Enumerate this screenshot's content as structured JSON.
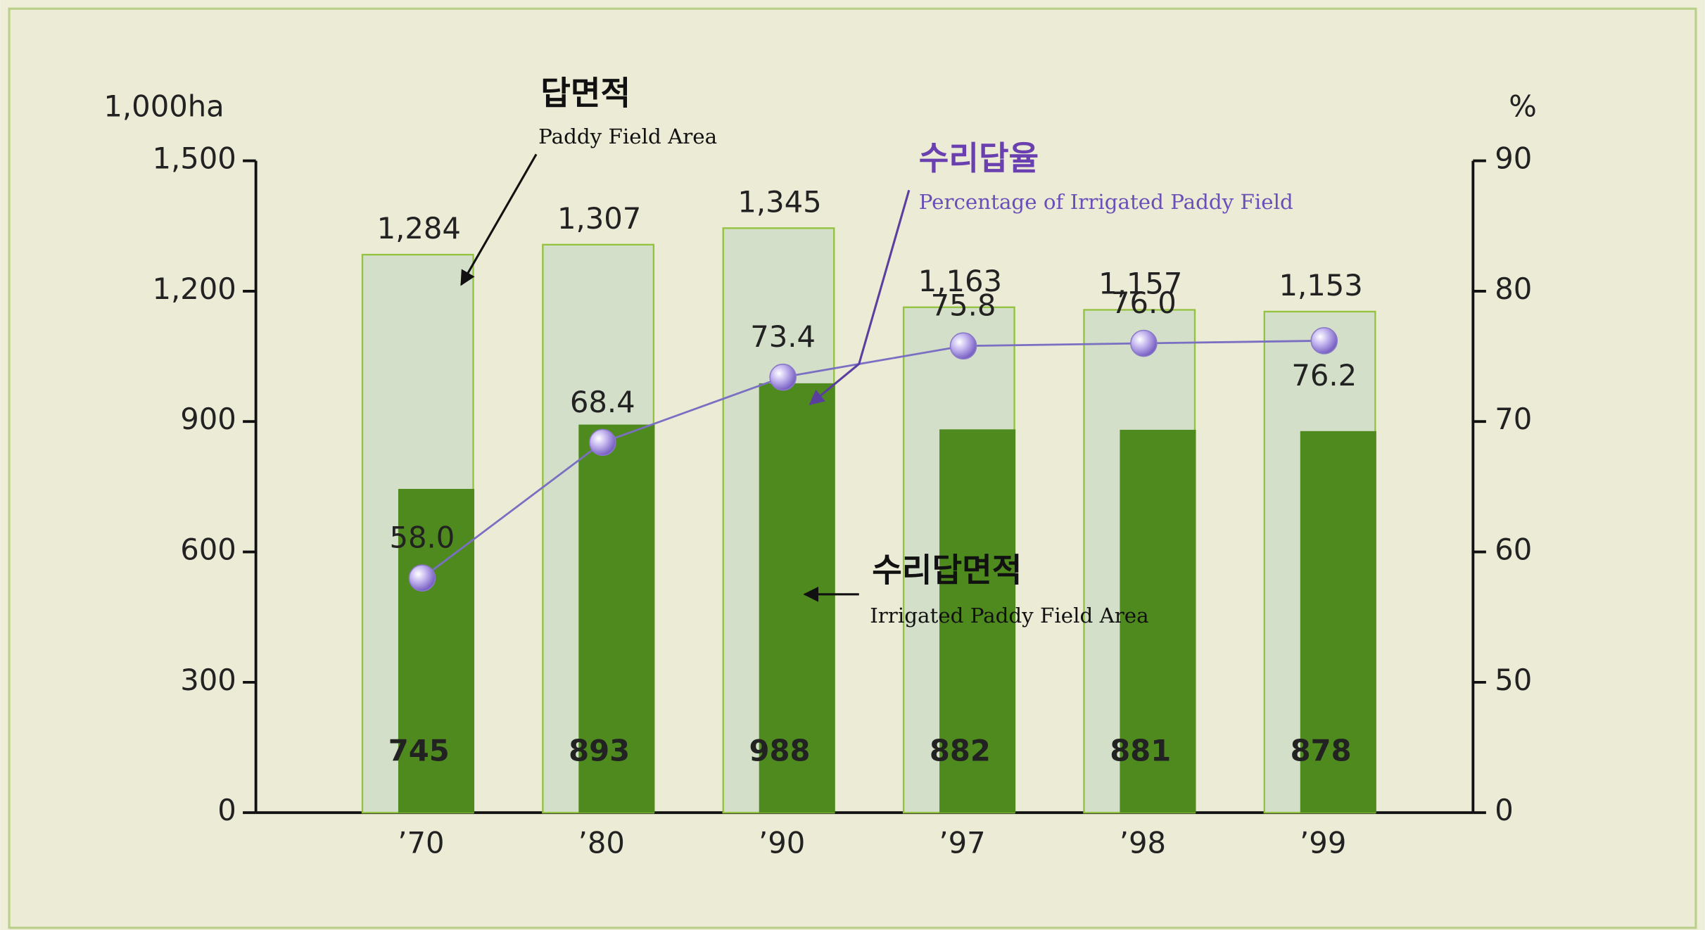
{
  "chart_data": {
    "type": "bar",
    "y_label": "1,000ha",
    "y2_label": "%",
    "categories": [
      "’70",
      "’80",
      "’90",
      "’97",
      "’98",
      "’99"
    ],
    "series": [
      {
        "name": "Paddy Field Area",
        "label_ko": "답면적",
        "color": "#d3dfc8",
        "values": [
          1284,
          1307,
          1345,
          1163,
          1157,
          1153
        ],
        "value_labels": [
          "1,284",
          "1,307",
          "1,345",
          "1,163",
          "1,157",
          "1,153"
        ]
      },
      {
        "name": "Irrigated Paddy Field Area",
        "label_ko": "수리답면적",
        "color": "#4e8a1e",
        "values": [
          745,
          893,
          988,
          882,
          881,
          878
        ]
      },
      {
        "name": "Percentage of Irrigated Paddy Field",
        "label_ko": "수리답율",
        "type": "line",
        "axis": "y2",
        "color": "#7a6fc2",
        "values": [
          58.0,
          68.4,
          73.4,
          75.8,
          76.0,
          76.2
        ],
        "value_labels": [
          "58.0",
          "68.4",
          "73.4",
          "75.8",
          "76.0",
          "76.2"
        ]
      }
    ],
    "ylim": [
      0,
      1500
    ],
    "yticks": [
      0,
      300,
      600,
      900,
      {
        "value": 1200,
        "label": "1,200"
      },
      {
        "value": 1500,
        "label": "1,500"
      }
    ],
    "y2lim": [
      0,
      90
    ],
    "y2ticks": [
      0,
      50,
      60,
      70,
      80,
      90
    ]
  }
}
